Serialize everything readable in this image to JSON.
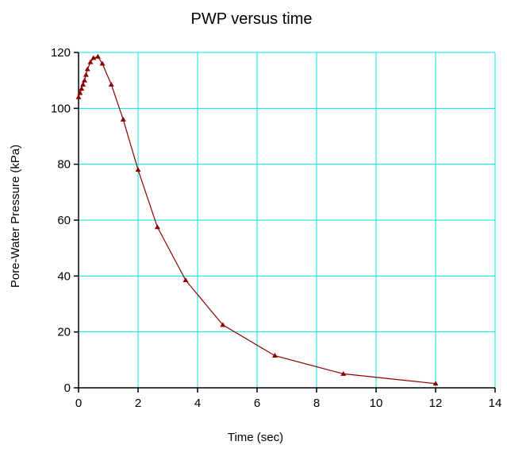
{
  "chart_data": {
    "type": "line",
    "title": "PWP versus time",
    "xlabel": "Time (sec)",
    "ylabel": "Pore-Water Pressure (kPa)",
    "xlim": [
      0,
      14
    ],
    "ylim": [
      0,
      120
    ],
    "xticks": [
      0,
      2,
      4,
      6,
      8,
      10,
      12,
      14
    ],
    "yticks": [
      0,
      20,
      40,
      60,
      80,
      100,
      120
    ],
    "grid": true,
    "colors": {
      "series": "#8b0000",
      "grid": "#00e5ee",
      "axis": "#000000"
    },
    "series": [
      {
        "marker": "triangle",
        "x": [
          0.0,
          0.05,
          0.1,
          0.15,
          0.2,
          0.25,
          0.3,
          0.4,
          0.5,
          0.65,
          0.8,
          1.1,
          1.5,
          2.0,
          2.65,
          3.6,
          4.85,
          6.6,
          8.9,
          12.0
        ],
        "y": [
          104,
          105.5,
          107,
          108.5,
          110,
          112,
          114,
          116.5,
          118,
          118.5,
          116,
          108.5,
          96,
          78,
          57.5,
          38.5,
          22.5,
          11.5,
          5,
          1.5
        ]
      }
    ]
  }
}
